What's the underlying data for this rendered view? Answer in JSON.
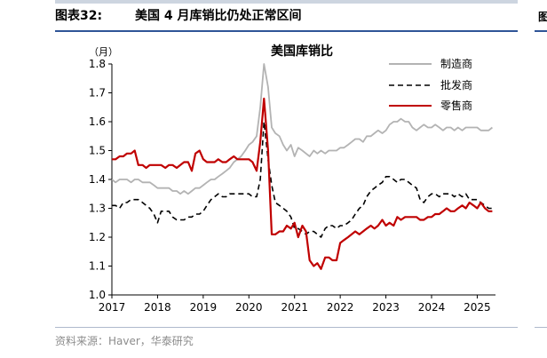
{
  "header": {
    "figure_label": "图表32:",
    "figure_title": "美国 4 月库销比仍处正常区间",
    "next_figure_fragment": "图"
  },
  "footer": {
    "source": "资料来源：Haver，华泰研究"
  },
  "colors": {
    "manufacturing": "#b3b3b3",
    "wholesale": "#000000",
    "retail": "#c00000",
    "header_rule": "#2f5597"
  },
  "chart_data": {
    "type": "line",
    "title": "美国库销比",
    "ylabel": "（月）",
    "ylim": [
      1.0,
      1.8
    ],
    "yticks": [
      "1.0",
      "1.1",
      "1.2",
      "1.3",
      "1.4",
      "1.5",
      "1.6",
      "1.7",
      "1.8"
    ],
    "xlim": [
      2017.0,
      2025.4
    ],
    "xticks": [
      "2017",
      "2018",
      "2019",
      "2020",
      "2021",
      "2022",
      "2023",
      "2024",
      "2025"
    ],
    "grid": false,
    "legend_position": "top-right",
    "series": [
      {
        "name": "制造商",
        "style": "solid",
        "color": "#b3b3b3",
        "x": [
          2017.0,
          2017.08,
          2017.17,
          2017.25,
          2017.33,
          2017.42,
          2017.5,
          2017.58,
          2017.67,
          2017.75,
          2017.83,
          2017.92,
          2018.0,
          2018.08,
          2018.17,
          2018.25,
          2018.33,
          2018.42,
          2018.5,
          2018.58,
          2018.67,
          2018.75,
          2018.83,
          2018.92,
          2019.0,
          2019.08,
          2019.17,
          2019.25,
          2019.33,
          2019.42,
          2019.5,
          2019.58,
          2019.67,
          2019.75,
          2019.83,
          2019.92,
          2020.0,
          2020.08,
          2020.17,
          2020.25,
          2020.33,
          2020.42,
          2020.5,
          2020.58,
          2020.67,
          2020.75,
          2020.83,
          2020.92,
          2021.0,
          2021.08,
          2021.17,
          2021.25,
          2021.33,
          2021.42,
          2021.5,
          2021.58,
          2021.67,
          2021.75,
          2021.83,
          2021.92,
          2022.0,
          2022.08,
          2022.17,
          2022.25,
          2022.33,
          2022.42,
          2022.5,
          2022.58,
          2022.67,
          2022.75,
          2022.83,
          2022.92,
          2023.0,
          2023.08,
          2023.17,
          2023.25,
          2023.33,
          2023.42,
          2023.5,
          2023.58,
          2023.67,
          2023.75,
          2023.83,
          2023.92,
          2024.0,
          2024.08,
          2024.17,
          2024.25,
          2024.33,
          2024.42,
          2024.5,
          2024.58,
          2024.67,
          2024.75,
          2024.83,
          2024.92,
          2025.0,
          2025.08,
          2025.17,
          2025.25,
          2025.33
        ],
        "values": [
          1.4,
          1.39,
          1.4,
          1.4,
          1.4,
          1.39,
          1.4,
          1.4,
          1.39,
          1.39,
          1.39,
          1.38,
          1.37,
          1.37,
          1.37,
          1.37,
          1.36,
          1.36,
          1.35,
          1.36,
          1.35,
          1.36,
          1.37,
          1.37,
          1.38,
          1.39,
          1.4,
          1.4,
          1.41,
          1.42,
          1.43,
          1.44,
          1.46,
          1.47,
          1.48,
          1.5,
          1.52,
          1.53,
          1.55,
          1.65,
          1.82,
          1.72,
          1.58,
          1.56,
          1.55,
          1.52,
          1.5,
          1.52,
          1.48,
          1.51,
          1.5,
          1.49,
          1.48,
          1.5,
          1.49,
          1.5,
          1.49,
          1.5,
          1.5,
          1.5,
          1.51,
          1.51,
          1.52,
          1.53,
          1.54,
          1.54,
          1.53,
          1.55,
          1.55,
          1.56,
          1.57,
          1.56,
          1.57,
          1.59,
          1.6,
          1.6,
          1.61,
          1.6,
          1.6,
          1.58,
          1.57,
          1.58,
          1.59,
          1.58,
          1.58,
          1.59,
          1.58,
          1.57,
          1.58,
          1.58,
          1.57,
          1.58,
          1.57,
          1.58,
          1.58,
          1.58,
          1.58,
          1.57,
          1.57,
          1.57,
          1.58
        ]
      },
      {
        "name": "批发商",
        "style": "dashed",
        "color": "#000000",
        "x": [
          2017.0,
          2017.08,
          2017.17,
          2017.25,
          2017.33,
          2017.42,
          2017.5,
          2017.58,
          2017.67,
          2017.75,
          2017.83,
          2017.92,
          2018.0,
          2018.08,
          2018.17,
          2018.25,
          2018.33,
          2018.42,
          2018.5,
          2018.58,
          2018.67,
          2018.75,
          2018.83,
          2018.92,
          2019.0,
          2019.08,
          2019.17,
          2019.25,
          2019.33,
          2019.42,
          2019.5,
          2019.58,
          2019.67,
          2019.75,
          2019.83,
          2019.92,
          2020.0,
          2020.08,
          2020.17,
          2020.25,
          2020.33,
          2020.42,
          2020.5,
          2020.58,
          2020.67,
          2020.75,
          2020.83,
          2020.92,
          2021.0,
          2021.08,
          2021.17,
          2021.25,
          2021.33,
          2021.42,
          2021.5,
          2021.58,
          2021.67,
          2021.75,
          2021.83,
          2021.92,
          2022.0,
          2022.08,
          2022.17,
          2022.25,
          2022.33,
          2022.42,
          2022.5,
          2022.58,
          2022.67,
          2022.75,
          2022.83,
          2022.92,
          2023.0,
          2023.08,
          2023.17,
          2023.25,
          2023.33,
          2023.42,
          2023.5,
          2023.58,
          2023.67,
          2023.75,
          2023.83,
          2023.92,
          2024.0,
          2024.08,
          2024.17,
          2024.25,
          2024.33,
          2024.42,
          2024.5,
          2024.58,
          2024.67,
          2024.75,
          2024.83,
          2024.92,
          2025.0,
          2025.08,
          2025.17,
          2025.25,
          2025.33
        ],
        "values": [
          1.31,
          1.31,
          1.3,
          1.32,
          1.32,
          1.33,
          1.33,
          1.33,
          1.32,
          1.31,
          1.3,
          1.28,
          1.25,
          1.29,
          1.29,
          1.29,
          1.27,
          1.26,
          1.26,
          1.26,
          1.27,
          1.27,
          1.28,
          1.28,
          1.29,
          1.31,
          1.33,
          1.34,
          1.35,
          1.34,
          1.34,
          1.35,
          1.35,
          1.35,
          1.35,
          1.35,
          1.35,
          1.34,
          1.34,
          1.4,
          1.6,
          1.47,
          1.38,
          1.32,
          1.31,
          1.3,
          1.29,
          1.27,
          1.23,
          1.23,
          1.22,
          1.21,
          1.22,
          1.22,
          1.21,
          1.2,
          1.23,
          1.24,
          1.24,
          1.23,
          1.24,
          1.24,
          1.25,
          1.26,
          1.28,
          1.3,
          1.31,
          1.34,
          1.36,
          1.37,
          1.38,
          1.39,
          1.41,
          1.41,
          1.4,
          1.39,
          1.4,
          1.4,
          1.39,
          1.38,
          1.37,
          1.33,
          1.32,
          1.34,
          1.35,
          1.35,
          1.34,
          1.35,
          1.35,
          1.35,
          1.34,
          1.35,
          1.34,
          1.35,
          1.33,
          1.33,
          1.33,
          1.32,
          1.31,
          1.3,
          1.3
        ]
      },
      {
        "name": "零售商",
        "style": "solid",
        "color": "#c00000",
        "x": [
          2017.0,
          2017.08,
          2017.17,
          2017.25,
          2017.33,
          2017.42,
          2017.5,
          2017.58,
          2017.67,
          2017.75,
          2017.83,
          2017.92,
          2018.0,
          2018.08,
          2018.17,
          2018.25,
          2018.33,
          2018.42,
          2018.5,
          2018.58,
          2018.67,
          2018.75,
          2018.83,
          2018.92,
          2019.0,
          2019.08,
          2019.17,
          2019.25,
          2019.33,
          2019.42,
          2019.5,
          2019.58,
          2019.67,
          2019.75,
          2019.83,
          2019.92,
          2020.0,
          2020.08,
          2020.17,
          2020.25,
          2020.33,
          2020.42,
          2020.5,
          2020.58,
          2020.67,
          2020.75,
          2020.83,
          2020.92,
          2021.0,
          2021.08,
          2021.17,
          2021.25,
          2021.33,
          2021.42,
          2021.5,
          2021.58,
          2021.67,
          2021.75,
          2021.83,
          2021.92,
          2022.0,
          2022.08,
          2022.17,
          2022.25,
          2022.33,
          2022.42,
          2022.5,
          2022.58,
          2022.67,
          2022.75,
          2022.83,
          2022.92,
          2023.0,
          2023.08,
          2023.17,
          2023.25,
          2023.33,
          2023.42,
          2023.5,
          2023.58,
          2023.67,
          2023.75,
          2023.83,
          2023.92,
          2024.0,
          2024.08,
          2024.17,
          2024.25,
          2024.33,
          2024.42,
          2024.5,
          2024.58,
          2024.67,
          2024.75,
          2024.83,
          2024.92,
          2025.0,
          2025.08,
          2025.17,
          2025.25,
          2025.33
        ],
        "values": [
          1.47,
          1.47,
          1.48,
          1.48,
          1.49,
          1.49,
          1.5,
          1.45,
          1.45,
          1.44,
          1.45,
          1.45,
          1.45,
          1.45,
          1.44,
          1.45,
          1.45,
          1.44,
          1.45,
          1.46,
          1.46,
          1.43,
          1.49,
          1.5,
          1.47,
          1.46,
          1.46,
          1.46,
          1.47,
          1.46,
          1.46,
          1.47,
          1.48,
          1.47,
          1.47,
          1.47,
          1.47,
          1.46,
          1.43,
          1.53,
          1.68,
          1.5,
          1.21,
          1.21,
          1.22,
          1.22,
          1.24,
          1.23,
          1.25,
          1.2,
          1.24,
          1.22,
          1.12,
          1.1,
          1.11,
          1.09,
          1.13,
          1.13,
          1.12,
          1.12,
          1.18,
          1.19,
          1.2,
          1.21,
          1.22,
          1.21,
          1.22,
          1.23,
          1.24,
          1.23,
          1.24,
          1.26,
          1.24,
          1.25,
          1.24,
          1.27,
          1.26,
          1.27,
          1.27,
          1.27,
          1.27,
          1.26,
          1.26,
          1.27,
          1.27,
          1.28,
          1.28,
          1.29,
          1.3,
          1.29,
          1.29,
          1.3,
          1.31,
          1.3,
          1.32,
          1.31,
          1.3,
          1.32,
          1.3,
          1.29,
          1.29
        ]
      }
    ]
  }
}
